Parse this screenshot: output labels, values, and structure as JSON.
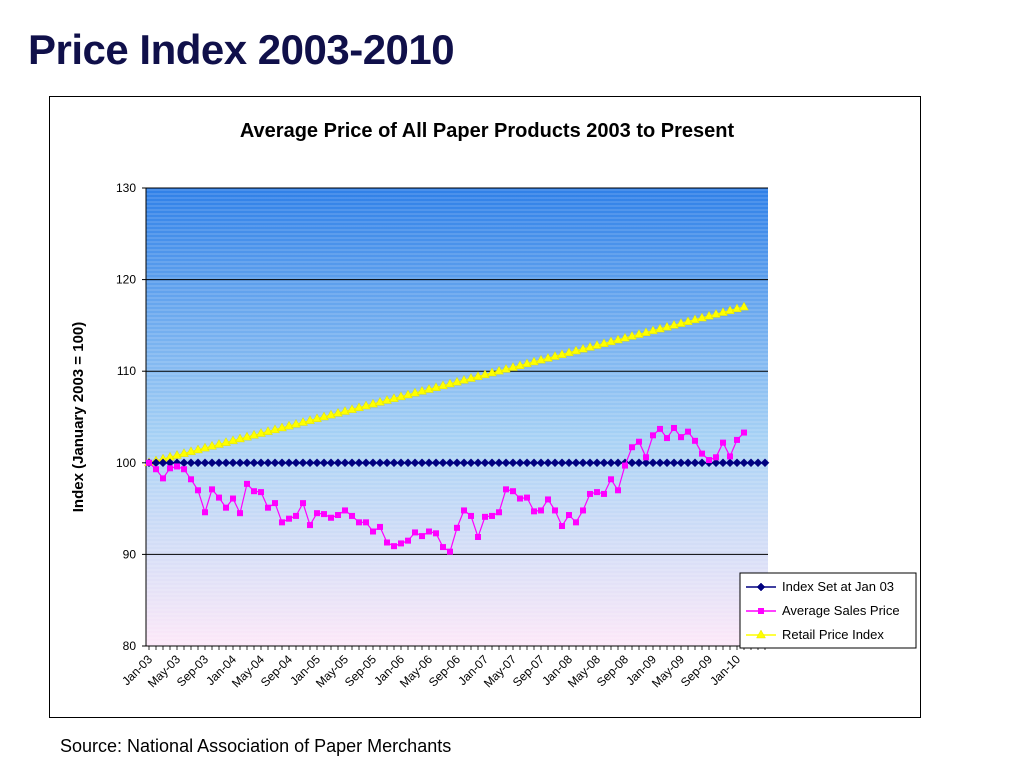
{
  "page": {
    "title": "Price Index 2003-2010",
    "source": "Source: National Association of Paper Merchants"
  },
  "colors": {
    "title": "#10104a",
    "plot_top": "#2f80e8",
    "plot_mid": "#a8d2f5",
    "plot_bottom": "#fde8f8",
    "index_series": "#000080",
    "sales_series": "#ff00ff",
    "retail_series": "#ffff00"
  },
  "chart_data": {
    "type": "line",
    "title": "Average Price of All Paper Products 2003 to Present",
    "xlabel": "",
    "ylabel": "Index (January 2003 = 100)",
    "ylim": [
      80,
      130
    ],
    "yticks": [
      "80",
      "90",
      "100",
      "110",
      "120",
      "130"
    ],
    "grid": true,
    "legend_position": "bottom-right",
    "x_start": "Jan-03",
    "x_end": "Apr-10",
    "x_tick_labels": [
      "Jan-03",
      "May-03",
      "Sep-03",
      "Jan-04",
      "May-04",
      "Sep-04",
      "Jan-05",
      "May-05",
      "Sep-05",
      "Jan-06",
      "May-06",
      "Sep-06",
      "Jan-07",
      "May-07",
      "Sep-07",
      "Jan-08",
      "May-08",
      "Sep-08",
      "Jan-09",
      "May-09",
      "Sep-09",
      "Jan-10"
    ],
    "series": [
      {
        "name": "Index Set at Jan 03",
        "color": "#000080",
        "marker": "diamond",
        "values": [
          100,
          100,
          100,
          100,
          100,
          100,
          100,
          100,
          100,
          100,
          100,
          100,
          100,
          100,
          100,
          100,
          100,
          100,
          100,
          100,
          100,
          100,
          100,
          100,
          100,
          100,
          100,
          100,
          100,
          100,
          100,
          100,
          100,
          100,
          100,
          100,
          100,
          100,
          100,
          100,
          100,
          100,
          100,
          100,
          100,
          100,
          100,
          100,
          100,
          100,
          100,
          100,
          100,
          100,
          100,
          100,
          100,
          100,
          100,
          100,
          100,
          100,
          100,
          100,
          100,
          100,
          100,
          100,
          100,
          100,
          100,
          100,
          100,
          100,
          100,
          100,
          100,
          100,
          100,
          100,
          100,
          100,
          100,
          100,
          100,
          100,
          100,
          100,
          100
        ]
      },
      {
        "name": "Average Sales Price",
        "color": "#ff00ff",
        "marker": "square",
        "values": [
          100,
          99.3,
          98.3,
          99.4,
          99.6,
          99.3,
          98.2,
          97,
          94.6,
          97.1,
          96.2,
          95.1,
          96.1,
          94.5,
          97.7,
          96.9,
          96.8,
          95.1,
          95.6,
          93.5,
          93.9,
          94.2,
          95.6,
          93.2,
          94.5,
          94.4,
          94,
          94.3,
          94.8,
          94.2,
          93.5,
          93.5,
          92.5,
          93,
          91.3,
          90.9,
          91.2,
          91.5,
          92.4,
          92,
          92.5,
          92.3,
          90.8,
          90.3,
          92.9,
          94.8,
          94.2,
          91.9,
          94.1,
          94.2,
          94.6,
          97.1,
          96.9,
          96.1,
          96.2,
          94.7,
          94.8,
          96,
          94.8,
          93.1,
          94.3,
          93.5,
          94.8,
          96.6,
          96.8,
          96.6,
          98.2,
          97,
          99.7,
          101.7,
          102.3,
          100.6,
          103,
          103.7,
          102.7,
          103.8,
          102.8,
          103.4,
          102.4,
          101,
          100.3,
          100.6,
          102.2,
          100.7,
          102.5,
          103.3
        ]
      },
      {
        "name": "Retail Price Index",
        "color": "#ffff00",
        "marker": "triangle",
        "values": [
          100,
          100.2,
          100.4,
          100.6,
          100.8,
          101,
          101.2,
          101.4,
          101.6,
          101.8,
          102,
          102.2,
          102.4,
          102.6,
          102.8,
          103,
          103.2,
          103.4,
          103.6,
          103.8,
          104,
          104.2,
          104.4,
          104.6,
          104.8,
          105,
          105.2,
          105.4,
          105.6,
          105.8,
          106,
          106.2,
          106.4,
          106.6,
          106.8,
          107,
          107.2,
          107.4,
          107.6,
          107.8,
          108,
          108.2,
          108.4,
          108.6,
          108.8,
          109,
          109.2,
          109.4,
          109.6,
          109.8,
          110,
          110.2,
          110.4,
          110.6,
          110.8,
          111,
          111.2,
          111.4,
          111.6,
          111.8,
          112,
          112.2,
          112.4,
          112.6,
          112.8,
          113,
          113.2,
          113.4,
          113.6,
          113.8,
          114,
          114.2,
          114.4,
          114.6,
          114.8,
          115,
          115.2,
          115.4,
          115.6,
          115.8,
          116,
          116.2,
          116.4,
          116.6,
          116.8,
          117
        ]
      }
    ]
  }
}
